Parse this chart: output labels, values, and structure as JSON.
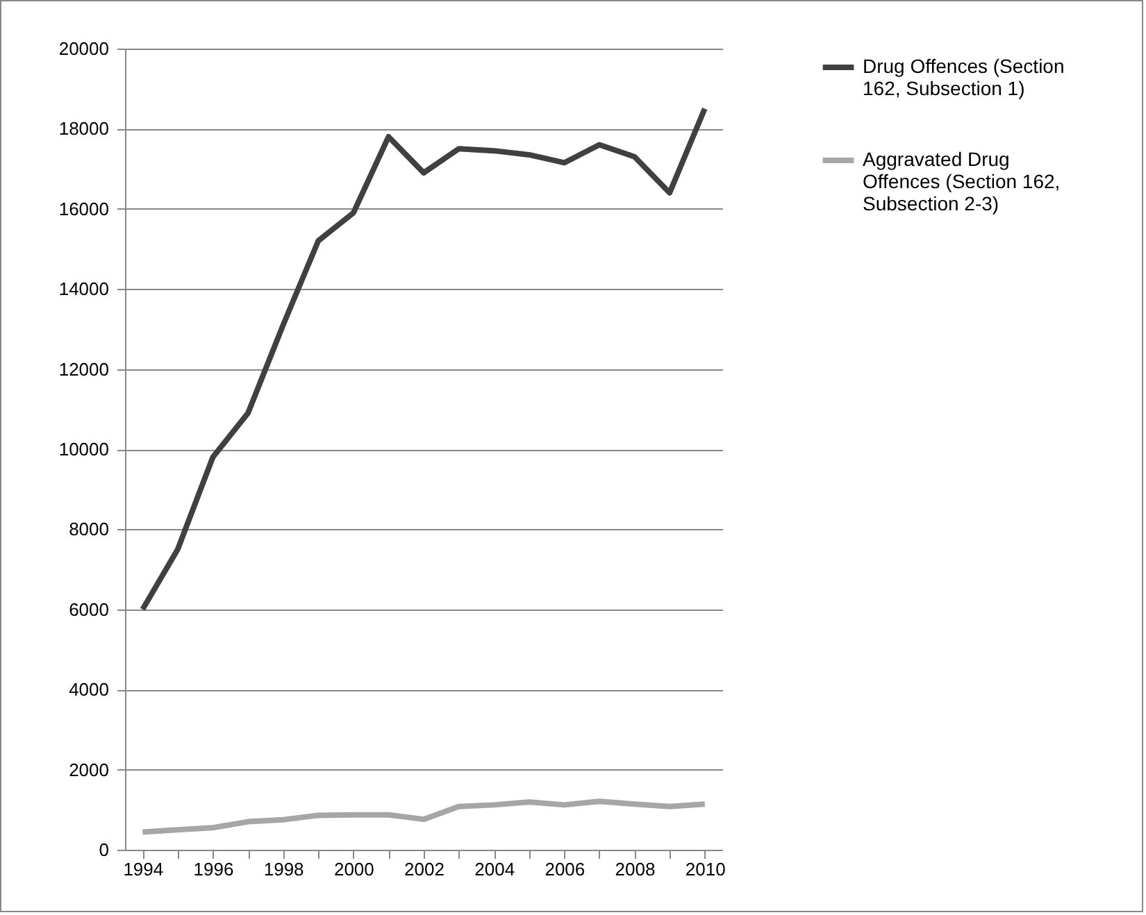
{
  "chart_data": {
    "type": "line",
    "categories": [
      "1994",
      null,
      "1996",
      null,
      "1998",
      null,
      "2000",
      null,
      "2002",
      null,
      "2004",
      null,
      "2006",
      null,
      "2008",
      null,
      "2010"
    ],
    "series": [
      {
        "name": "Drug Offences (Section 162, Subsection 1)",
        "color": "#404040",
        "values": [
          6000,
          7500,
          9800,
          10900,
          13100,
          15200,
          15900,
          17800,
          16900,
          17500,
          17450,
          17350,
          17150,
          17600,
          17300,
          16400,
          18500
        ]
      },
      {
        "name": "Aggravated Drug Offences (Section 162, Subsection 2-3)",
        "color": "#a6a6a6",
        "values": [
          440,
          500,
          550,
          700,
          750,
          860,
          870,
          870,
          760,
          1080,
          1120,
          1190,
          1120,
          1210,
          1140,
          1080,
          1140
        ]
      }
    ],
    "ylim": [
      0,
      20000
    ],
    "yticks": [
      0,
      2000,
      4000,
      6000,
      8000,
      10000,
      12000,
      14000,
      16000,
      18000,
      20000
    ],
    "grid": "y",
    "legend": "right",
    "marker": "none",
    "line_style": "solid"
  }
}
